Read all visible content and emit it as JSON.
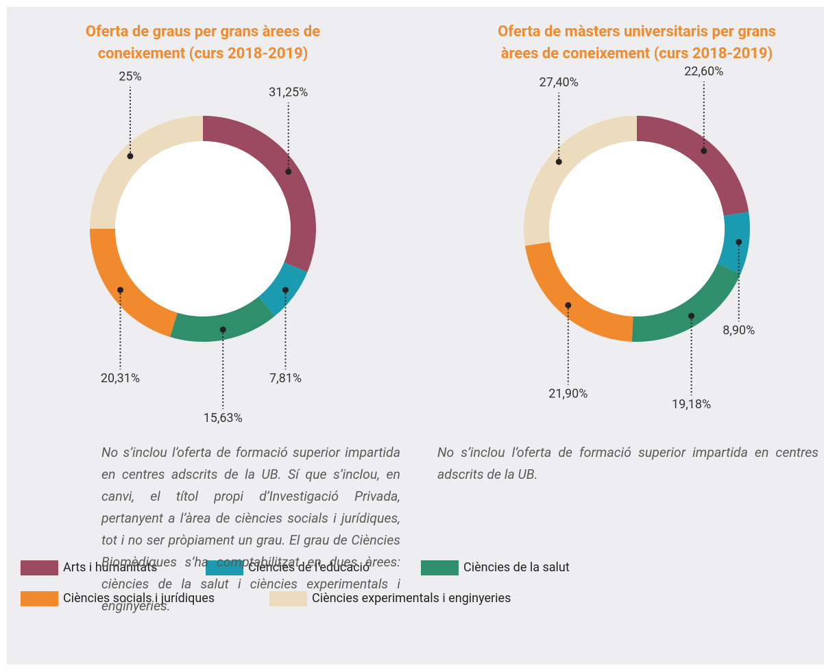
{
  "chart_data": [
    {
      "type": "donut",
      "title": [
        "Oferta de graus per grans àrees de",
        "coneixement (curs 2018-2019)"
      ],
      "categories": [
        "Arts i humanitats",
        "Ciències de l’educació",
        "Ciències de la salut",
        "Ciències socials i jurídiques",
        "Ciències experimentals i enginyeries"
      ],
      "values": [
        31.25,
        7.81,
        15.63,
        20.31,
        25
      ],
      "value_labels": [
        "31,25%",
        "7,81%",
        "15,63%",
        "20,31%",
        "25%"
      ],
      "colors": [
        "#9b4a60",
        "#1a9bb0",
        "#2f8f6c",
        "#f08a2c",
        "#ecdcbd"
      ],
      "note": "No s’inclou l’oferta de formació superior impartida en centres adscrits de la UB. Sí que s’inclou, en canvi, el títol propi d’Investigació Privada, pertanyent a l’àrea de ciències socials i jurídiques, tot i no ser pròpiament un grau. El grau de Ciències Biomèdiques s’ha comptabilitzat en dues àrees: ciències de la salut i ciències experimentals i enginyeries."
    },
    {
      "type": "donut",
      "title": [
        "Oferta de màsters universitaris per grans",
        "àrees de coneixement (curs 2018-2019)"
      ],
      "categories": [
        "Arts i humanitats",
        "Ciències de l’educació",
        "Ciències de la salut",
        "Ciències socials i jurídiques",
        "Ciències experimentals i enginyeries"
      ],
      "values": [
        22.6,
        8.9,
        19.18,
        21.9,
        27.4
      ],
      "value_labels": [
        "22,60%",
        "8,90%",
        "19,18%",
        "21,90%",
        "27,40%"
      ],
      "colors": [
        "#9b4a60",
        "#1a9bb0",
        "#2f8f6c",
        "#f08a2c",
        "#ecdcbd"
      ],
      "note": "No s’inclou l’oferta de formació superior impartida en centres adscrits de la UB."
    }
  ]
}
